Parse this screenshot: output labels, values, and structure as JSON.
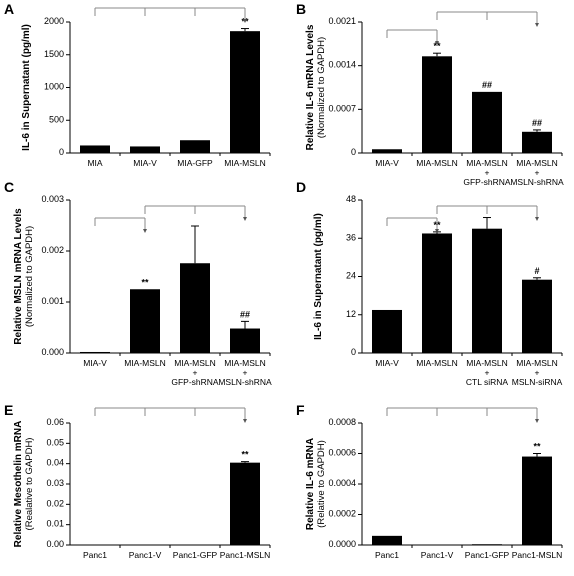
{
  "chart_data": [
    {
      "type": "bar",
      "panel": "A",
      "ylabel": [
        "IL-6 in Supernatant (pg/ml)"
      ],
      "categories": [
        "MIA",
        "MIA-V",
        "MIA-GFP",
        "MIA-MSLN"
      ],
      "values": [
        115,
        100,
        195,
        1860
      ],
      "errors": [
        null,
        null,
        null,
        40
      ],
      "annotations": [
        null,
        null,
        null,
        "**"
      ],
      "color": "#000000",
      "ylim": [
        0,
        2000
      ],
      "yticks": [
        0,
        500,
        1000,
        1500,
        2000
      ]
    },
    {
      "type": "bar",
      "panel": "B",
      "ylabel": [
        "Relative IL-6 mRNA Levels",
        "(Normalized to GAPDH)"
      ],
      "categories": [
        "MIA-V",
        "MIA-MSLN",
        "MIA-MSLN\n+\nGFP-shRNA",
        "MIA-MSLN\n+\nMSLN-shRNA"
      ],
      "values": [
        6e-05,
        0.00155,
        0.00098,
        0.00034
      ],
      "errors": [
        null,
        5e-05,
        null,
        3e-05
      ],
      "annotations": [
        null,
        "**",
        "##",
        "##"
      ],
      "color": "#000000",
      "ylim": [
        0,
        0.0021
      ],
      "yticks": [
        0,
        0.0007,
        0.0014,
        0.0021
      ]
    },
    {
      "type": "bar",
      "panel": "C",
      "ylabel": [
        "Relative MSLN mRNA Levels",
        "(Normalized to GAPDH)"
      ],
      "categories": [
        "MIA-V",
        "MIA-MSLN",
        "MIA-MSLN\n+\nGFP-shRNA",
        "MIA-MSLN\n+\nMSLN-shRNA"
      ],
      "values": [
        2e-05,
        0.00125,
        0.00176,
        0.00048
      ],
      "errors": [
        null,
        null,
        0.00073,
        0.00014
      ],
      "annotations": [
        null,
        "**",
        null,
        "##"
      ],
      "color": "#000000",
      "ylim": [
        0,
        0.003
      ],
      "yticks": [
        {
          "value": 0,
          "label": "0.000"
        },
        {
          "value": 0.001,
          "label": "0.001"
        },
        {
          "value": 0.002,
          "label": "0.002"
        },
        {
          "value": 0.003,
          "label": "0.003"
        }
      ]
    },
    {
      "type": "bar",
      "panel": "D",
      "ylabel": [
        "IL-6 in Supernatant  (pg/ml)"
      ],
      "categories": [
        "MIA-V",
        "MIA-MSLN",
        "MIA-MSLN\n+\nCTL siRNA",
        "MIA-MSLN\n+\nMSLN-siRNA"
      ],
      "values": [
        13.5,
        37.5,
        39,
        23
      ],
      "errors": [
        null,
        0.5,
        3.5,
        0.6
      ],
      "annotations": [
        null,
        "**",
        null,
        "#"
      ],
      "color": "#000000",
      "ylim": [
        0,
        48
      ],
      "yticks": [
        0,
        12,
        24,
        36,
        48
      ]
    },
    {
      "type": "bar",
      "panel": "E",
      "ylabel": [
        "Relative Mesothelin  mRNA",
        "(Realative to GAPDH)"
      ],
      "categories": [
        "Panc1",
        "Panc1-V",
        "Panc1-GFP",
        "Panc1-MSLN"
      ],
      "values": [
        0,
        0,
        0,
        0.0405
      ],
      "errors": [
        null,
        null,
        null,
        0.0005
      ],
      "annotations": [
        null,
        null,
        null,
        "**"
      ],
      "color": "#000000",
      "ylim": [
        0,
        0.06
      ],
      "yticks": [
        {
          "value": 0,
          "label": "0.00"
        },
        {
          "value": 0.01,
          "label": "0.01"
        },
        {
          "value": 0.02,
          "label": "0.02"
        },
        {
          "value": 0.03,
          "label": "0.03"
        },
        {
          "value": 0.04,
          "label": "0.04"
        },
        {
          "value": 0.05,
          "label": "0.05"
        },
        {
          "value": 0.06,
          "label": "0.06"
        }
      ]
    },
    {
      "type": "bar",
      "panel": "F",
      "ylabel": [
        "Relative IL-6 mRNA",
        "(Relative to GAPDH)"
      ],
      "categories": [
        "Panc1",
        "Panc1-V",
        "Panc1-GFP",
        "Panc1-MSLN"
      ],
      "values": [
        6e-05,
        0,
        5e-06,
        0.00058
      ],
      "errors": [
        null,
        null,
        null,
        2e-05
      ],
      "annotations": [
        null,
        null,
        null,
        "**"
      ],
      "color": "#000000",
      "ylim": [
        0,
        0.0008
      ],
      "yticks": [
        {
          "value": 0,
          "label": "0.0000"
        },
        {
          "value": 0.0002,
          "label": "0.0002"
        },
        {
          "value": 0.0004,
          "label": "0.0004"
        },
        {
          "value": 0.0006,
          "label": "0.0006"
        },
        {
          "value": 0.0008,
          "label": "0.0008"
        }
      ]
    }
  ]
}
